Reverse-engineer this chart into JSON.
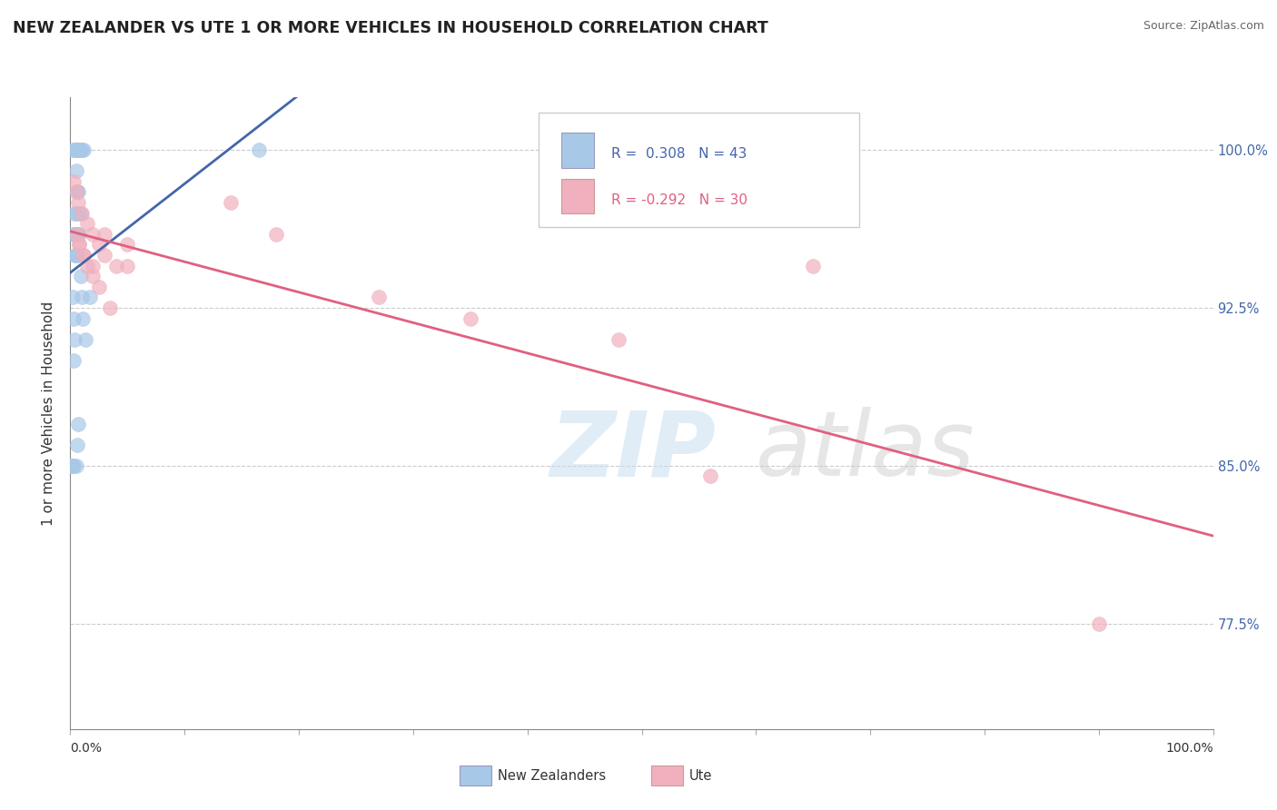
{
  "title": "NEW ZEALANDER VS UTE 1 OR MORE VEHICLES IN HOUSEHOLD CORRELATION CHART",
  "source": "Source: ZipAtlas.com",
  "ylabel": "1 or more Vehicles in Household",
  "xlim": [
    0.0,
    1.0
  ],
  "ylim": [
    0.725,
    1.025
  ],
  "yticks": [
    0.775,
    0.85,
    0.925,
    1.0
  ],
  "ytick_labels": [
    "77.5%",
    "85.0%",
    "92.5%",
    "100.0%"
  ],
  "blue_R": 0.308,
  "blue_N": 43,
  "pink_R": -0.292,
  "pink_N": 30,
  "blue_color": "#a8c8e8",
  "pink_color": "#f0b0be",
  "blue_line_color": "#4466aa",
  "pink_line_color": "#e06080",
  "legend_label_blue": "New Zealanders",
  "legend_label_pink": "Ute",
  "blue_scatter_x": [
    0.003,
    0.004,
    0.005,
    0.006,
    0.007,
    0.008,
    0.009,
    0.01,
    0.012,
    0.005,
    0.006,
    0.007,
    0.008,
    0.009,
    0.004,
    0.005,
    0.006,
    0.007,
    0.008,
    0.003,
    0.004,
    0.005,
    0.006,
    0.004,
    0.005,
    0.006,
    0.009,
    0.01,
    0.011,
    0.013,
    0.017,
    0.002,
    0.003,
    0.004,
    0.0,
    0.001,
    0.002,
    0.003,
    0.005,
    0.006,
    0.007,
    0.165,
    0.003
  ],
  "blue_scatter_y": [
    1.0,
    1.0,
    1.0,
    1.0,
    1.0,
    1.0,
    1.0,
    1.0,
    1.0,
    0.99,
    0.98,
    0.98,
    0.97,
    0.97,
    0.97,
    0.97,
    0.96,
    0.96,
    0.96,
    0.96,
    0.96,
    0.96,
    0.96,
    0.95,
    0.95,
    0.95,
    0.94,
    0.93,
    0.92,
    0.91,
    0.93,
    0.93,
    0.92,
    0.91,
    0.85,
    0.85,
    0.85,
    0.85,
    0.85,
    0.86,
    0.87,
    1.0,
    0.9
  ],
  "pink_scatter_x": [
    0.003,
    0.005,
    0.007,
    0.01,
    0.015,
    0.02,
    0.025,
    0.03,
    0.04,
    0.05,
    0.006,
    0.008,
    0.012,
    0.015,
    0.02,
    0.025,
    0.035,
    0.008,
    0.012,
    0.02,
    0.03,
    0.05,
    0.14,
    0.18,
    0.27,
    0.35,
    0.48,
    0.56,
    0.65,
    0.9
  ],
  "pink_scatter_y": [
    0.985,
    0.98,
    0.975,
    0.97,
    0.965,
    0.96,
    0.955,
    0.95,
    0.945,
    0.945,
    0.96,
    0.955,
    0.95,
    0.945,
    0.94,
    0.935,
    0.925,
    0.955,
    0.95,
    0.945,
    0.96,
    0.955,
    0.975,
    0.96,
    0.93,
    0.92,
    0.91,
    0.845,
    0.945,
    0.775
  ]
}
